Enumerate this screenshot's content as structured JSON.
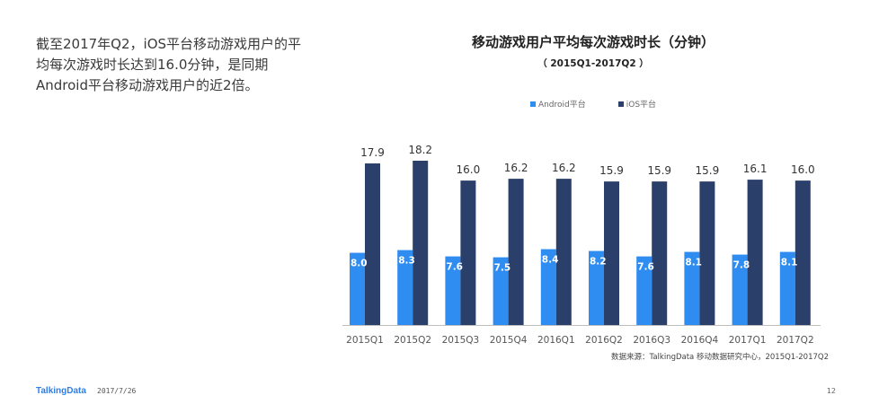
{
  "headline": "截至2017年Q2，iOS平台移动游戏用户的平均每次游戏时长达到16.0分钟，是同期Android平台移动游戏用户的近2倍。",
  "source": "数据来源：TalkingData 移动数据研究中心，2015Q1-2017Q2",
  "footer": {
    "brand": "TalkingData",
    "date": "2017/7/26",
    "page": "12"
  },
  "colors": {
    "android": "#2f8cf0",
    "ios": "#2b3f6b",
    "axis": "#bfbfbf",
    "android_label": "#ffffff",
    "ios_label": "#333333"
  },
  "chart_data": {
    "type": "bar",
    "title": "移动游戏用户平均每次游戏时长（分钟）",
    "subtitle": "（ 2015Q1-2017Q2 ）",
    "legend_position": "top-center",
    "grid": false,
    "categories": [
      "2015Q1",
      "2015Q2",
      "2015Q3",
      "2015Q4",
      "2016Q1",
      "2016Q2",
      "2016Q3",
      "2016Q4",
      "2017Q1",
      "2017Q2"
    ],
    "series": [
      {
        "name": "Android平台",
        "values": [
          8.0,
          8.3,
          7.6,
          7.5,
          8.4,
          8.2,
          7.6,
          8.1,
          7.8,
          8.1
        ]
      },
      {
        "name": "iOS平台",
        "values": [
          17.9,
          18.2,
          16.0,
          16.2,
          16.2,
          15.9,
          15.9,
          15.9,
          16.1,
          16.0
        ]
      }
    ],
    "ylim": [
      0,
      18.2
    ]
  }
}
